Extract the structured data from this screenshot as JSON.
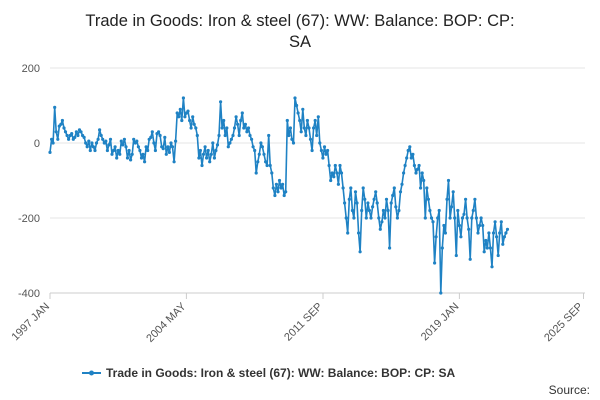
{
  "chart_data": {
    "type": "line",
    "title_lines": [
      "Trade in Goods: Iron & steel (67): WW: Balance: BOP: CP:",
      "SA"
    ],
    "xlabel": "",
    "ylabel": "",
    "ylim": [
      -400,
      200
    ],
    "yticks": [
      200,
      0,
      -200,
      -400
    ],
    "ytick_labels": [
      "200",
      "0",
      "-200",
      "-400"
    ],
    "xlim": [
      1997.0,
      2025.75
    ],
    "xticks": [
      {
        "label": "1997 JAN",
        "value": 1997.0
      },
      {
        "label": "2004 MAY",
        "value": 2004.33
      },
      {
        "label": "2011 SEP",
        "value": 2011.67
      },
      {
        "label": "2019 JAN",
        "value": 2019.0
      },
      {
        "label": "2025 SEP",
        "value": 2025.67
      }
    ],
    "grid": true,
    "legend_position": "bottom",
    "series": [
      {
        "name": "Trade in Goods: Iron & steel (67): WW: Balance: BOP: CP: SA",
        "color": "#1f82c4",
        "start_year": 1997,
        "start_month": 1,
        "frequency": "monthly",
        "values": [
          -25,
          10,
          0,
          95,
          30,
          10,
          45,
          50,
          60,
          40,
          30,
          20,
          10,
          20,
          25,
          10,
          15,
          30,
          20,
          35,
          30,
          20,
          15,
          0,
          -10,
          5,
          -20,
          0,
          -10,
          -20,
          0,
          10,
          35,
          20,
          10,
          0,
          5,
          -20,
          -5,
          10,
          -30,
          -20,
          -10,
          -40,
          -20,
          -30,
          5,
          -5,
          10,
          -10,
          -40,
          -20,
          -45,
          -30,
          10,
          0,
          5,
          -10,
          -20,
          -40,
          -30,
          -50,
          -10,
          -20,
          10,
          15,
          30,
          0,
          -20,
          25,
          30,
          20,
          -10,
          -15,
          15,
          -30,
          -10,
          -25,
          0,
          -10,
          -50,
          5,
          80,
          70,
          90,
          60,
          120,
          70,
          80,
          85,
          60,
          40,
          70,
          50,
          40,
          20,
          -40,
          -20,
          -60,
          -30,
          -10,
          -40,
          -20,
          -50,
          -30,
          0,
          -40,
          -20,
          -5,
          20,
          110,
          40,
          60,
          20,
          40,
          -10,
          0,
          10,
          20,
          40,
          70,
          50,
          20,
          60,
          80,
          40,
          50,
          30,
          40,
          20,
          10,
          -10,
          -20,
          -80,
          -50,
          -30,
          0,
          -10,
          -30,
          -50,
          -60,
          20,
          -60,
          -80,
          -120,
          -140,
          -110,
          -130,
          -100,
          -120,
          -110,
          -140,
          -130,
          60,
          20,
          40,
          10,
          0,
          120,
          100,
          80,
          60,
          30,
          90,
          40,
          20,
          60,
          40,
          10,
          -20,
          40,
          60,
          20,
          70,
          0,
          -20,
          -40,
          -10,
          -30,
          -20,
          -60,
          -100,
          -80,
          -90,
          -60,
          -80,
          -110,
          -60,
          -80,
          -120,
          -160,
          -200,
          -240,
          -150,
          -120,
          -180,
          -200,
          -130,
          -160,
          -240,
          -290,
          -180,
          -120,
          -150,
          -200,
          -160,
          -180,
          -200,
          -170,
          -150,
          -130,
          -160,
          -200,
          -230,
          -210,
          -180,
          -200,
          -150,
          -180,
          -280,
          -160,
          -140,
          -120,
          -170,
          -200,
          -180,
          -130,
          -110,
          -80,
          -60,
          -40,
          -20,
          -10,
          -40,
          -30,
          -60,
          -80,
          -70,
          -60,
          -120,
          -80,
          -100,
          -200,
          -120,
          -150,
          -180,
          -200,
          -210,
          -320,
          -250,
          -200,
          -180,
          -400,
          -280,
          -220,
          -240,
          -150,
          -100,
          -200,
          -170,
          -130,
          -200,
          -300,
          -180,
          -220,
          -250,
          -200,
          -190,
          -150,
          -200,
          -230,
          -310,
          -200,
          -180,
          -150,
          -200,
          -240,
          -220,
          -200,
          -220,
          -290,
          -260,
          -280,
          -240,
          -280,
          -330,
          -240,
          -210,
          -250,
          -300,
          -240,
          -210,
          -270,
          -250,
          -240,
          -230
        ]
      }
    ],
    "source_label": "Source:"
  }
}
